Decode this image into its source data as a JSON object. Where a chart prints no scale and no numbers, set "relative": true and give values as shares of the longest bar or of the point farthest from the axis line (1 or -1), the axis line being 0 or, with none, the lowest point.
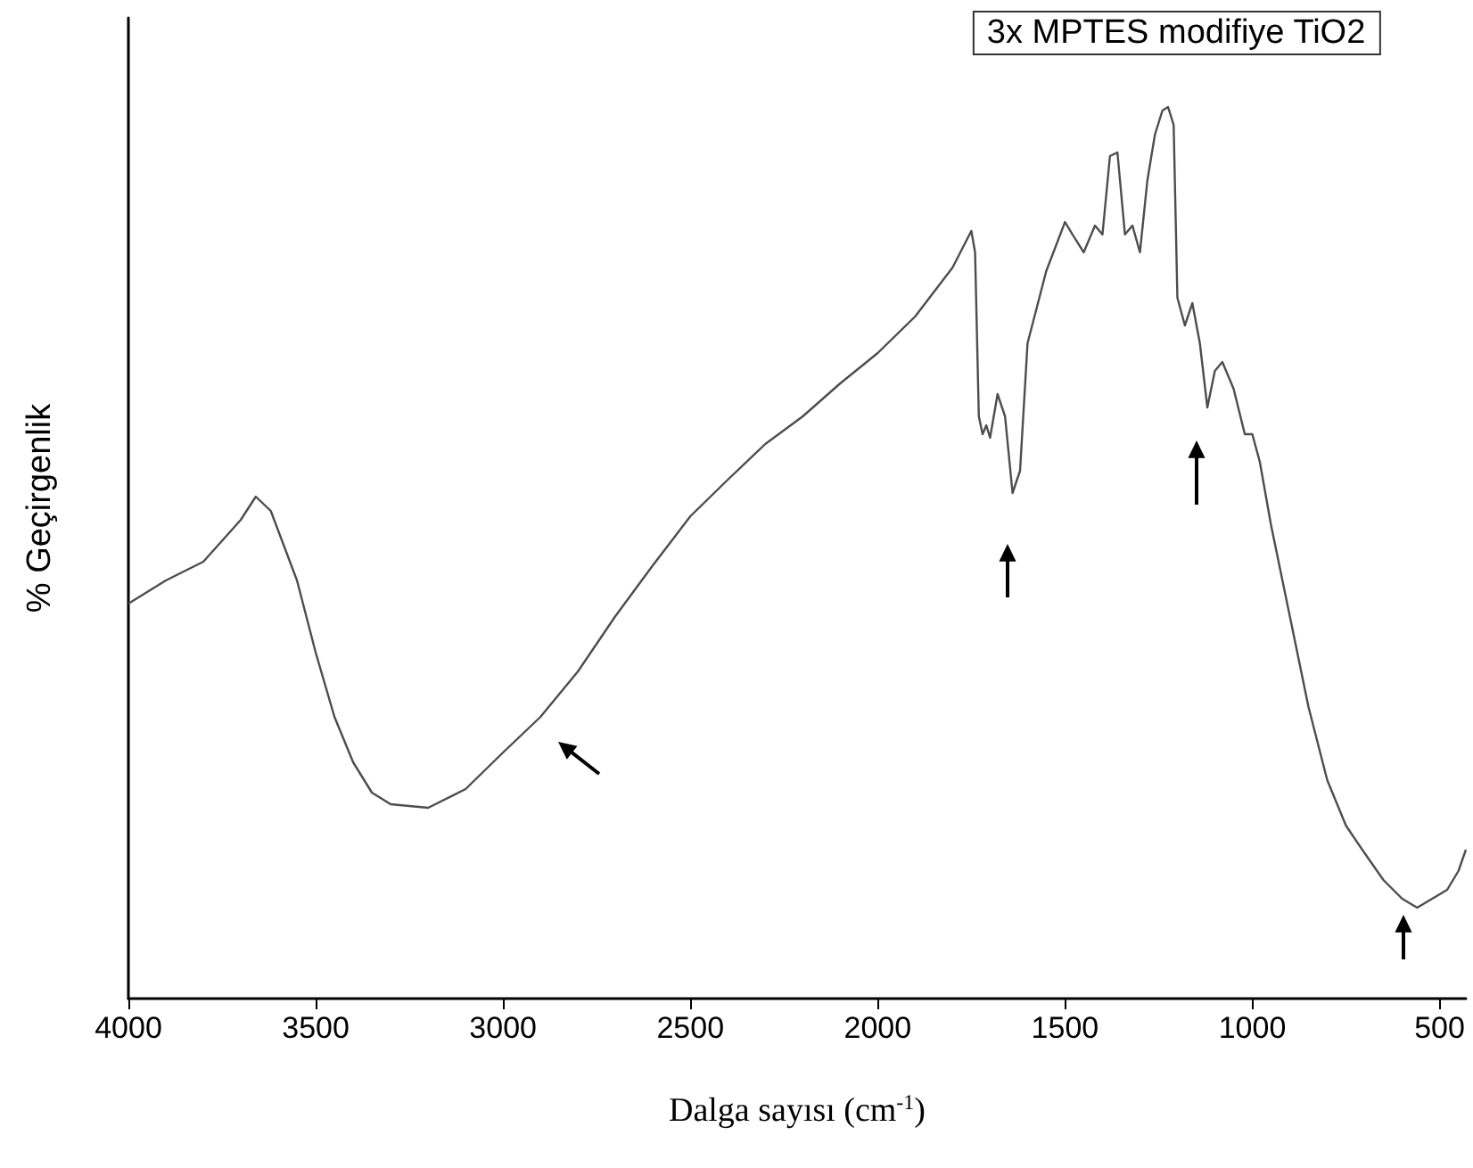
{
  "chart_data": {
    "type": "line",
    "title": "3x MPTES modifiye TiO2",
    "xlabel": "Dalga sayısı (cm$^{-1}$)",
    "ylabel": "% Geçirgenlik",
    "relative": true,
    "xlim": [
      4000,
      430
    ],
    "xticks": [
      4000,
      3500,
      3000,
      2500,
      2000,
      1500,
      1000,
      500
    ],
    "series": [
      {
        "color": "#4d4d4d",
        "x": [
          4000,
          3900,
          3800,
          3700,
          3660,
          3620,
          3550,
          3500,
          3450,
          3400,
          3350,
          3300,
          3200,
          3100,
          3000,
          2950,
          2900,
          2800,
          2700,
          2600,
          2500,
          2400,
          2300,
          2200,
          2100,
          2000,
          1900,
          1800,
          1750,
          1740,
          1730,
          1720,
          1710,
          1700,
          1680,
          1660,
          1640,
          1620,
          1600,
          1550,
          1500,
          1480,
          1450,
          1420,
          1400,
          1380,
          1360,
          1340,
          1320,
          1300,
          1280,
          1260,
          1240,
          1225,
          1210,
          1200,
          1180,
          1160,
          1140,
          1120,
          1100,
          1080,
          1050,
          1020,
          1000,
          980,
          950,
          900,
          850,
          800,
          750,
          700,
          650,
          600,
          560,
          520,
          480,
          450,
          430
        ],
        "values": [
          0.443,
          0.469,
          0.49,
          0.537,
          0.563,
          0.547,
          0.469,
          0.388,
          0.316,
          0.265,
          0.231,
          0.218,
          0.214,
          0.235,
          0.276,
          0.296,
          0.316,
          0.367,
          0.429,
          0.486,
          0.541,
          0.582,
          0.622,
          0.653,
          0.69,
          0.724,
          0.765,
          0.82,
          0.861,
          0.837,
          0.653,
          0.633,
          0.643,
          0.629,
          0.678,
          0.653,
          0.567,
          0.592,
          0.735,
          0.816,
          0.871,
          0.857,
          0.837,
          0.867,
          0.857,
          0.945,
          0.949,
          0.857,
          0.867,
          0.837,
          0.918,
          0.969,
          0.996,
          1,
          0.98,
          0.786,
          0.755,
          0.78,
          0.735,
          0.663,
          0.704,
          0.714,
          0.684,
          0.633,
          0.633,
          0.602,
          0.531,
          0.429,
          0.327,
          0.245,
          0.194,
          0.163,
          0.133,
          0.112,
          0.102,
          0.112,
          0.122,
          0.143,
          0.167
        ]
      }
    ]
  }
}
